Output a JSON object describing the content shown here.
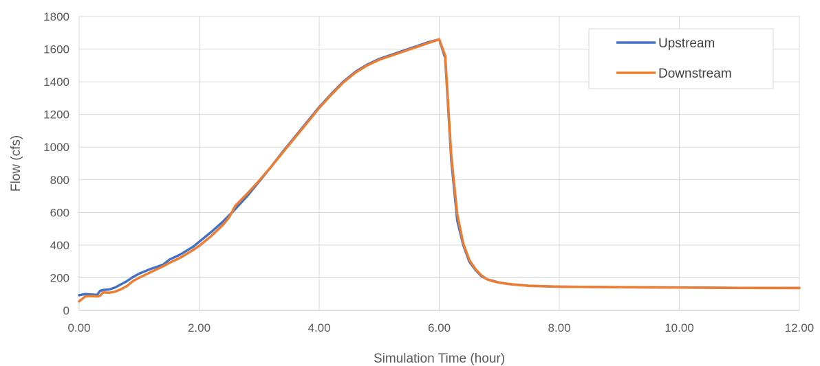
{
  "chart_data": {
    "type": "line",
    "title": "",
    "xlabel": "Simulation Time (hour)",
    "ylabel": "Flow (cfs)",
    "xlim": [
      0,
      12
    ],
    "ylim": [
      0,
      1800
    ],
    "xticks": [
      0,
      2,
      4,
      6,
      8,
      10,
      12
    ],
    "xtick_labels": [
      "0.00",
      "2.00",
      "4.00",
      "6.00",
      "8.00",
      "10.00",
      "12.00"
    ],
    "yticks": [
      0,
      200,
      400,
      600,
      800,
      1000,
      1200,
      1400,
      1600,
      1800
    ],
    "ytick_labels": [
      "0",
      "200",
      "400",
      "600",
      "800",
      "1000",
      "1200",
      "1400",
      "1600",
      "1800"
    ],
    "grid": true,
    "legend_position": "top-right",
    "series": [
      {
        "name": "Upstream",
        "color": "#4472C4",
        "x": [
          0,
          0.1,
          0.2,
          0.3,
          0.35,
          0.4,
          0.5,
          0.6,
          0.7,
          0.8,
          0.9,
          1.0,
          1.2,
          1.4,
          1.5,
          1.7,
          1.9,
          2.0,
          2.2,
          2.4,
          2.6,
          2.8,
          3.0,
          3.2,
          3.4,
          3.6,
          3.8,
          4.0,
          4.2,
          4.4,
          4.6,
          4.8,
          5.0,
          5.2,
          5.4,
          5.6,
          5.8,
          6.0,
          6.1,
          6.2,
          6.3,
          6.4,
          6.5,
          6.6,
          6.7,
          6.8,
          6.9,
          7.0,
          7.2,
          7.5,
          8.0,
          9.0,
          10.0,
          11.0,
          12.0
        ],
        "values": [
          93,
          100,
          98,
          95,
          120,
          125,
          128,
          140,
          160,
          180,
          205,
          225,
          255,
          280,
          310,
          345,
          390,
          420,
          480,
          545,
          620,
          700,
          790,
          880,
          975,
          1065,
          1155,
          1245,
          1325,
          1400,
          1460,
          1505,
          1540,
          1565,
          1590,
          1615,
          1640,
          1660,
          1545,
          920,
          550,
          400,
          300,
          250,
          210,
          190,
          180,
          170,
          160,
          150,
          145,
          142,
          140,
          138,
          137
        ]
      },
      {
        "name": "Downstream",
        "color": "#ED7D31",
        "x": [
          0,
          0.1,
          0.2,
          0.3,
          0.35,
          0.4,
          0.5,
          0.6,
          0.7,
          0.8,
          0.9,
          1.0,
          1.2,
          1.4,
          1.5,
          1.7,
          1.9,
          2.0,
          2.2,
          2.4,
          2.5,
          2.6,
          2.8,
          3.0,
          3.2,
          3.4,
          3.6,
          3.8,
          4.0,
          4.2,
          4.4,
          4.6,
          4.8,
          5.0,
          5.2,
          5.4,
          5.6,
          5.8,
          6.0,
          6.1,
          6.2,
          6.3,
          6.4,
          6.5,
          6.6,
          6.7,
          6.8,
          6.9,
          7.0,
          7.2,
          7.5,
          8.0,
          9.0,
          10.0,
          11.0,
          12.0
        ],
        "values": [
          55,
          85,
          88,
          85,
          90,
          110,
          108,
          115,
          130,
          150,
          180,
          200,
          235,
          270,
          290,
          325,
          370,
          395,
          455,
          525,
          570,
          640,
          715,
          795,
          880,
          970,
          1060,
          1150,
          1240,
          1320,
          1395,
          1455,
          1500,
          1535,
          1560,
          1585,
          1610,
          1635,
          1660,
          1560,
          950,
          590,
          410,
          310,
          255,
          215,
          190,
          178,
          170,
          160,
          150,
          145,
          142,
          140,
          138,
          137
        ]
      }
    ]
  }
}
